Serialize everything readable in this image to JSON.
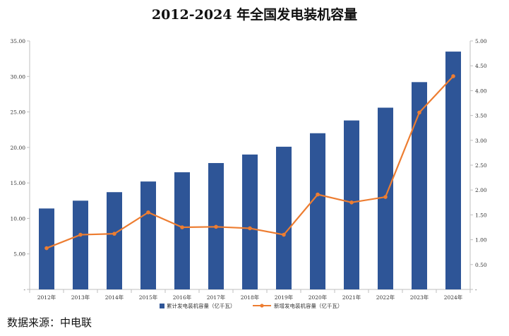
{
  "title": "2012-2024 年全国发电装机容量",
  "source": "数据来源：中电联",
  "colors": {
    "bar": "#2e5597",
    "line": "#ed7d31",
    "axis": "#bfbfbf"
  },
  "chart_data": {
    "type": "bar+line",
    "categories": [
      "2012年",
      "2013年",
      "2014年",
      "2015年",
      "2016年",
      "2017年",
      "2018年",
      "2019年",
      "2020年",
      "2021年",
      "2022年",
      "2023年",
      "2024年"
    ],
    "series": [
      {
        "name": "累计发电装机容量（亿千瓦）",
        "type": "bar",
        "axis": "left",
        "values": [
          11.4,
          12.5,
          13.7,
          15.2,
          16.5,
          17.8,
          19.0,
          20.1,
          22.0,
          23.8,
          25.6,
          29.2,
          33.5
        ]
      },
      {
        "name": "新增发电装机容量（亿千瓦）",
        "type": "line",
        "axis": "right",
        "values": [
          0.83,
          1.1,
          1.12,
          1.55,
          1.25,
          1.26,
          1.23,
          1.1,
          1.91,
          1.75,
          1.86,
          3.56,
          4.29
        ]
      }
    ],
    "y_left": {
      "ylim": [
        0,
        35
      ],
      "ticks": [
        "-",
        "5.00",
        "10.00",
        "15.00",
        "20.00",
        "25.00",
        "30.00",
        "35.00"
      ]
    },
    "y_right": {
      "ylim": [
        0,
        5
      ],
      "ticks": [
        "-",
        "0.50",
        "1.00",
        "1.50",
        "2.00",
        "2.50",
        "3.00",
        "3.50",
        "4.00",
        "4.50",
        "5.00"
      ]
    },
    "legend": "bottom",
    "grid": false
  }
}
